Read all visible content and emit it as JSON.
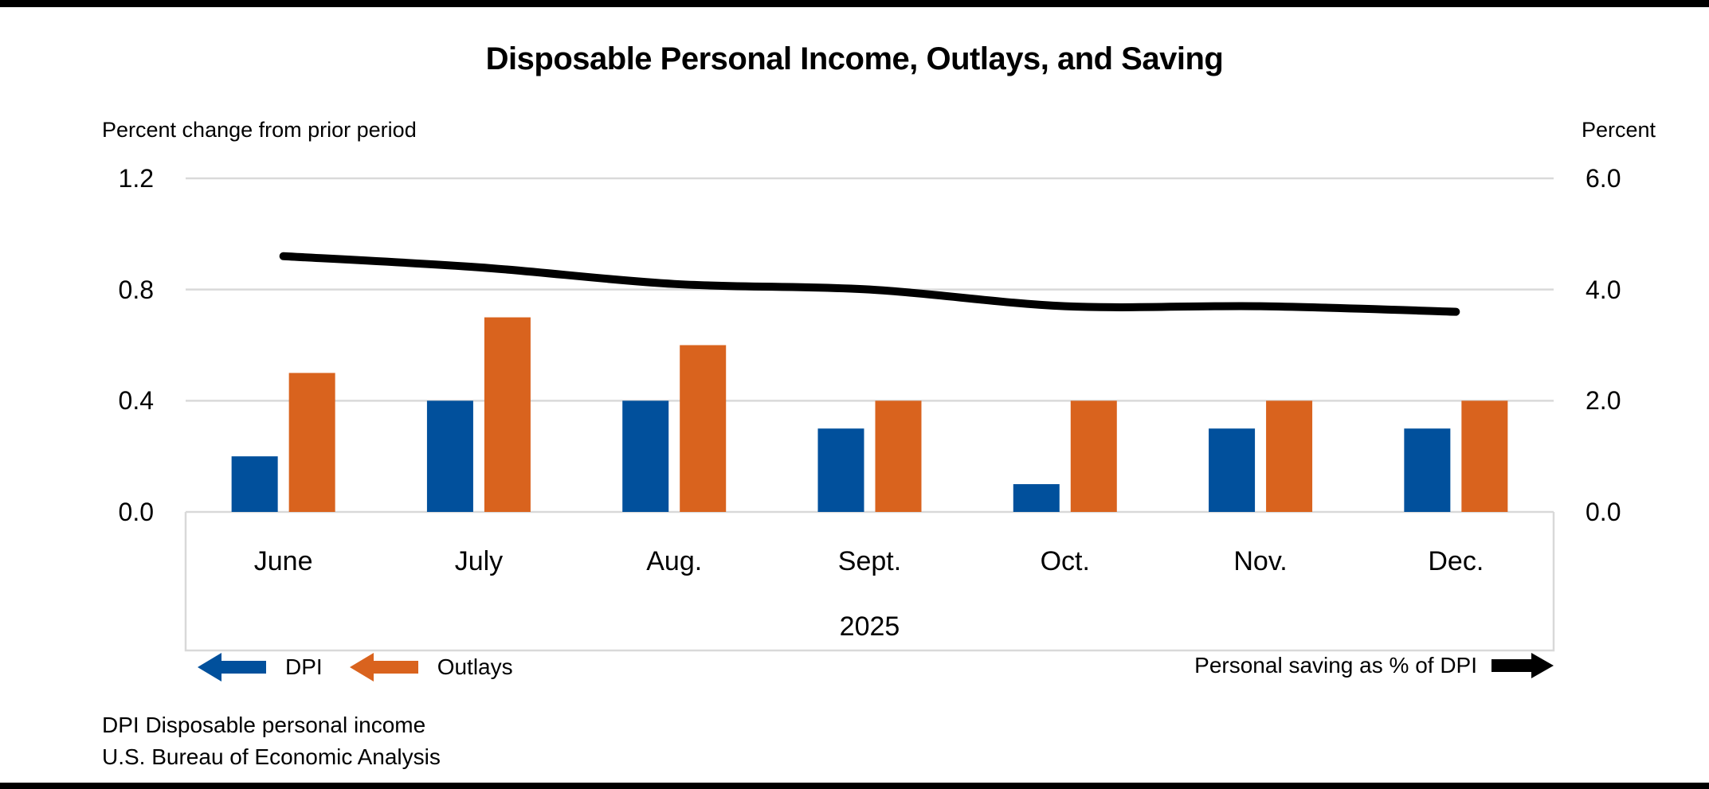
{
  "page": {
    "title": "Disposable Personal Income, Outlays, and Saving",
    "left_axis_title": "Percent change from prior period",
    "right_axis_title": "Percent",
    "x_group_label": "2025",
    "footer_line1": "DPI Disposable personal income",
    "footer_line2": "U.S. Bureau of Economic Analysis"
  },
  "legend": {
    "dpi_label": "DPI",
    "outlays_label": "Outlays",
    "saving_label": "Personal saving as % of DPI"
  },
  "colors": {
    "dpi_bar": "#01509c",
    "outlays_bar": "#d9631e",
    "saving_line": "#000000",
    "gridline": "#d9d9d9"
  },
  "chart_data": {
    "type": "bar",
    "subtype": "grouped bars with secondary-axis line",
    "title": "Disposable Personal Income, Outlays, and Saving",
    "categories": [
      "June",
      "July",
      "Aug.",
      "Sept.",
      "Oct.",
      "Nov.",
      "Dec."
    ],
    "category_group_label": "2025",
    "series": [
      {
        "name": "DPI",
        "type": "bar",
        "axis": "left",
        "color": "#01509c",
        "values": [
          0.2,
          0.4,
          0.4,
          0.3,
          0.1,
          0.3,
          0.3
        ]
      },
      {
        "name": "Outlays",
        "type": "bar",
        "axis": "left",
        "color": "#d9631e",
        "values": [
          0.5,
          0.7,
          0.6,
          0.4,
          0.4,
          0.4,
          0.4
        ]
      },
      {
        "name": "Personal saving as % of DPI",
        "type": "line",
        "axis": "right",
        "color": "#000000",
        "values": [
          4.6,
          4.4,
          4.1,
          4.0,
          3.7,
          3.7,
          3.6
        ]
      }
    ],
    "left_axis": {
      "label": "Percent change from prior period",
      "min": 0.0,
      "max": 1.2,
      "tick_labels": [
        "1.2",
        "0.8",
        "0.4",
        "0.0"
      ],
      "tick_values": [
        1.2,
        0.8,
        0.4,
        0.0
      ]
    },
    "right_axis": {
      "label": "Percent",
      "min": 0.0,
      "max": 6.0,
      "tick_labels": [
        "6.0",
        "4.0",
        "2.0",
        "0.0"
      ],
      "tick_values": [
        6.0,
        4.0,
        2.0,
        0.0
      ]
    },
    "grid": true,
    "legend_position": "bottom",
    "source_note1": "DPI Disposable personal income",
    "source_note2": "U.S. Bureau of Economic Analysis"
  }
}
